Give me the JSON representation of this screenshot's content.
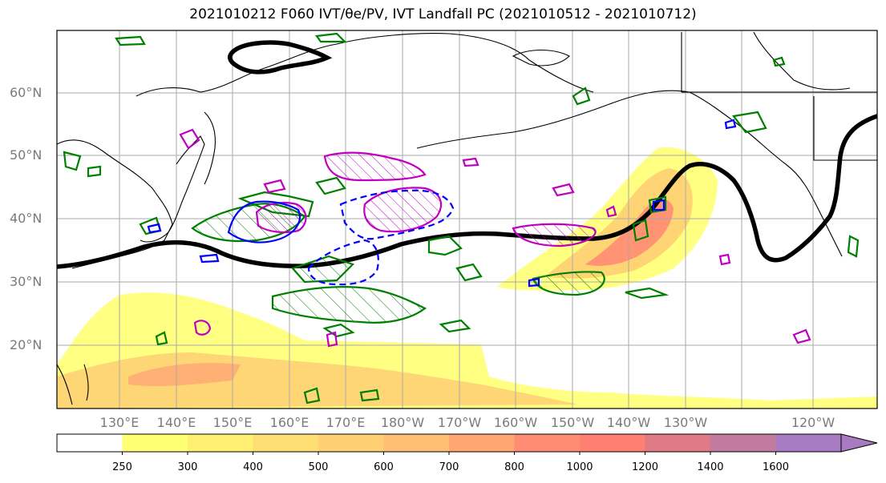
{
  "title": "2021010212 F060 IVT/θe/PV, IVT Landfall PC (2021010512 - 2021010712)",
  "map": {
    "lat_labels": [
      "60°N",
      "50°N",
      "40°N",
      "30°N",
      "20°N"
    ],
    "lon_labels": [
      "130°E",
      "140°E",
      "150°E",
      "160°E",
      "170°E",
      "180°W",
      "170°W",
      "160°W",
      "150°W",
      "140°W",
      "130°W",
      "120°W"
    ],
    "colors": {
      "ivt_low": "#ffff73",
      "ivt_mid": "#ffbe73",
      "ivt_high": "#ff7f6e",
      "theta_e_contour": "#000000",
      "pv_contour": "#008000",
      "landfall_pc_pos": "#c000c0",
      "landfall_pc_neg": "#0000ff",
      "grid": "#aaaaaa"
    }
  },
  "colorbar": {
    "levels": [
      "250",
      "300",
      "400",
      "500",
      "600",
      "700",
      "800",
      "1000",
      "1200",
      "1400",
      "1600"
    ],
    "colors": [
      "#ffffff",
      "#ffff73",
      "#ffef73",
      "#ffdf73",
      "#ffcf73",
      "#ffbe73",
      "#ffa673",
      "#ff8c73",
      "#ff7f73",
      "#e07a85",
      "#c27a9e",
      "#a87ac2"
    ]
  }
}
